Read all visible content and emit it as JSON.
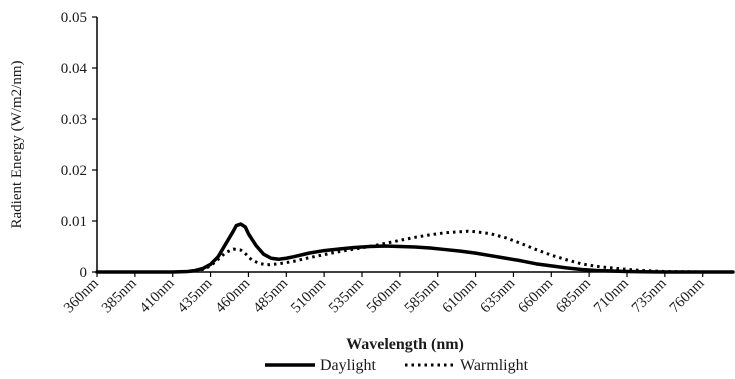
{
  "chart_data": {
    "type": "line",
    "title": "",
    "xlabel": "Wavelength (nm)",
    "ylabel": "Radient Energy (W/m2/nm)",
    "ylim": [
      0,
      0.05
    ],
    "xlim": [
      360,
      780
    ],
    "x_tick_labels": [
      "360nm",
      "385nm",
      "410nm",
      "435nm",
      "460nm",
      "485nm",
      "510nm",
      "535nm",
      "560nm",
      "585nm",
      "610nm",
      "635nm",
      "660nm",
      "685nm",
      "710nm",
      "735nm",
      "760nm"
    ],
    "x_tick_values": [
      360,
      385,
      410,
      435,
      460,
      485,
      510,
      535,
      560,
      585,
      610,
      635,
      660,
      685,
      710,
      735,
      760
    ],
    "y_tick_labels": [
      "0",
      "0.01",
      "0.02",
      "0.03",
      "0.04",
      "0.05"
    ],
    "y_tick_values": [
      0,
      0.01,
      0.02,
      0.03,
      0.04,
      0.05
    ],
    "grid": false,
    "legend_position": "bottom",
    "series": [
      {
        "name": "Daylight",
        "style": "solid",
        "color": "#000000",
        "x": [
          360,
          385,
          410,
          420,
          425,
          430,
          435,
          440,
          445,
          450,
          452,
          455,
          458,
          460,
          465,
          470,
          475,
          480,
          485,
          490,
          500,
          510,
          520,
          530,
          540,
          550,
          560,
          570,
          580,
          590,
          600,
          610,
          620,
          630,
          640,
          650,
          660,
          670,
          680,
          690,
          700,
          710,
          720,
          735,
          760,
          780
        ],
        "y": [
          0,
          0,
          0,
          0.0001,
          0.0003,
          0.0007,
          0.0015,
          0.003,
          0.0055,
          0.008,
          0.0091,
          0.0094,
          0.0088,
          0.0075,
          0.0052,
          0.0035,
          0.0027,
          0.0025,
          0.0027,
          0.003,
          0.0037,
          0.0042,
          0.0045,
          0.0048,
          0.005,
          0.0051,
          0.005,
          0.0049,
          0.0047,
          0.0044,
          0.0041,
          0.0037,
          0.0032,
          0.0027,
          0.0022,
          0.0016,
          0.0012,
          0.0008,
          0.0005,
          0.0003,
          0.0002,
          0.0001,
          5e-05,
          0,
          0,
          0
        ]
      },
      {
        "name": "Warmlight",
        "style": "dotted",
        "color": "#000000",
        "x": [
          360,
          385,
          410,
          420,
          430,
          435,
          440,
          445,
          450,
          455,
          458,
          462,
          467,
          472,
          480,
          490,
          500,
          510,
          520,
          530,
          540,
          550,
          560,
          570,
          580,
          590,
          600,
          605,
          610,
          620,
          630,
          640,
          650,
          660,
          670,
          680,
          690,
          700,
          710,
          720,
          735,
          760,
          780
        ],
        "y": [
          0,
          0,
          0,
          0.0001,
          0.0005,
          0.0012,
          0.0025,
          0.0038,
          0.0045,
          0.0043,
          0.0036,
          0.0024,
          0.0017,
          0.0014,
          0.0016,
          0.0021,
          0.0028,
          0.0034,
          0.004,
          0.0045,
          0.005,
          0.0056,
          0.0062,
          0.0068,
          0.0073,
          0.0077,
          0.0079,
          0.008,
          0.0079,
          0.0075,
          0.0067,
          0.0056,
          0.0044,
          0.0033,
          0.0024,
          0.0016,
          0.0011,
          0.0008,
          0.0005,
          0.0003,
          0.0001,
          0,
          0
        ]
      }
    ]
  }
}
